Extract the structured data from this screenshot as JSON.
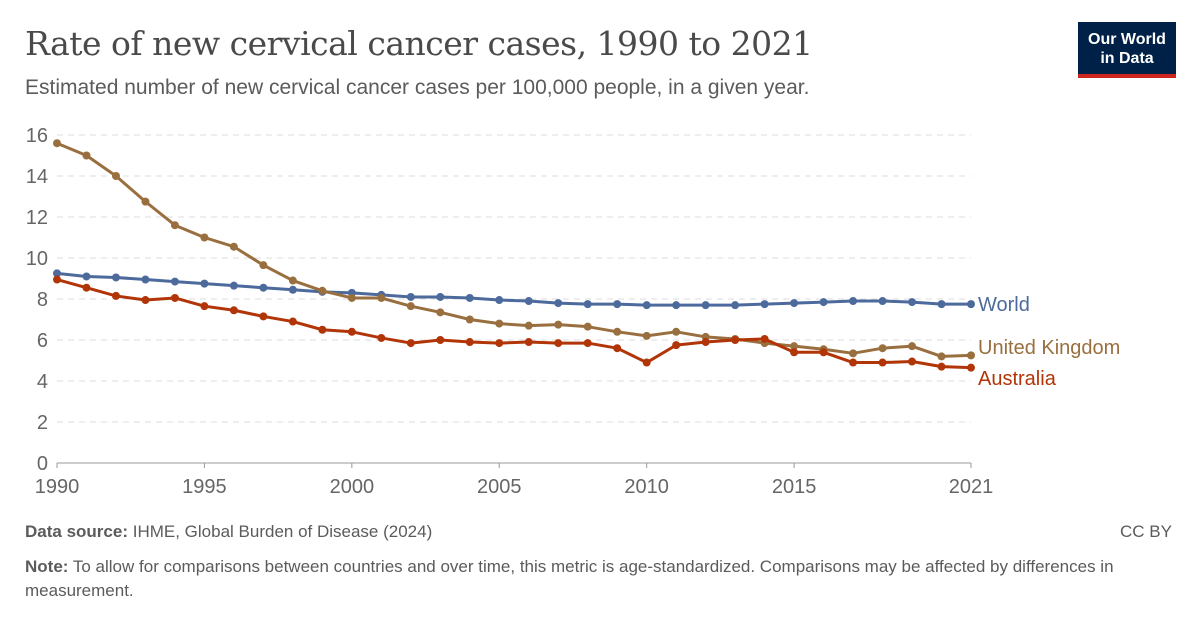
{
  "header": {
    "title": "Rate of new cervical cancer cases, 1990 to 2021",
    "subtitle": "Estimated number of new cervical cancer cases per 100,000 people, in a given year.",
    "logo": "Our World in Data"
  },
  "footer": {
    "source_label": "Data source:",
    "source": "IHME, Global Burden of Disease (2024)",
    "license": "CC BY",
    "note_label": "Note:",
    "note": "To allow for comparisons between countries and over time, this metric is age-standardized. Comparisons may be affected by differences in measurement."
  },
  "chart_data": {
    "type": "line",
    "title": "Rate of new cervical cancer cases, 1990 to 2021",
    "xlim": [
      1990,
      2021
    ],
    "ylim": [
      0,
      16
    ],
    "xticks": [
      1990,
      1995,
      2000,
      2005,
      2010,
      2015,
      2021
    ],
    "yticks": [
      0,
      2,
      4,
      6,
      8,
      10,
      12,
      14,
      16
    ],
    "grid": "horizontal dashed",
    "legend": "inline-right",
    "x": [
      1990,
      1991,
      1992,
      1993,
      1994,
      1995,
      1996,
      1997,
      1998,
      1999,
      2000,
      2001,
      2002,
      2003,
      2004,
      2005,
      2006,
      2007,
      2008,
      2009,
      2010,
      2011,
      2012,
      2013,
      2014,
      2015,
      2016,
      2017,
      2018,
      2019,
      2020,
      2021
    ],
    "series": [
      {
        "name": "World",
        "color": "#4c6a9c",
        "values": [
          9.25,
          9.1,
          9.05,
          8.95,
          8.85,
          8.75,
          8.65,
          8.55,
          8.45,
          8.35,
          8.3,
          8.2,
          8.1,
          8.1,
          8.05,
          7.95,
          7.9,
          7.8,
          7.75,
          7.75,
          7.7,
          7.7,
          7.7,
          7.7,
          7.75,
          7.8,
          7.85,
          7.9,
          7.9,
          7.85,
          7.75,
          7.75
        ]
      },
      {
        "name": "United Kingdom",
        "color": "#9a6f3f",
        "values": [
          15.6,
          15.0,
          14.0,
          12.75,
          11.6,
          11.0,
          10.55,
          9.65,
          8.9,
          8.4,
          8.05,
          8.05,
          7.65,
          7.35,
          7.0,
          6.8,
          6.7,
          6.75,
          6.65,
          6.4,
          6.2,
          6.4,
          6.15,
          6.05,
          5.85,
          5.7,
          5.55,
          5.35,
          5.6,
          5.7,
          5.2,
          5.25
        ]
      },
      {
        "name": "Australia",
        "color": "#b13507",
        "values": [
          8.95,
          8.55,
          8.15,
          7.95,
          8.05,
          7.65,
          7.45,
          7.15,
          6.9,
          6.5,
          6.4,
          6.1,
          5.85,
          6.0,
          5.9,
          5.85,
          5.9,
          5.85,
          5.85,
          5.6,
          4.9,
          5.75,
          5.9,
          6.0,
          6.05,
          5.4,
          5.4,
          4.9,
          4.9,
          4.95,
          4.7,
          4.65
        ]
      }
    ]
  }
}
